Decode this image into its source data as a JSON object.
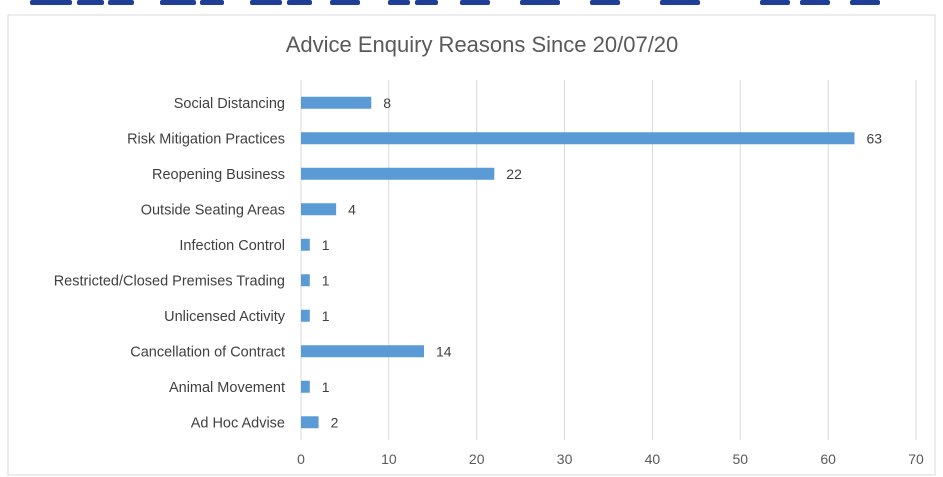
{
  "chart_data": {
    "type": "bar",
    "orientation": "horizontal",
    "title": "Advice Enquiry Reasons Since 20/07/20",
    "categories": [
      "Social Distancing",
      "Risk Mitigation Practices",
      "Reopening Business",
      "Outside Seating Areas",
      "Infection Control",
      "Restricted/Closed Premises Trading",
      "Unlicensed Activity",
      "Cancellation of Contract",
      "Animal Movement",
      "Ad Hoc Advise"
    ],
    "values": [
      8,
      63,
      22,
      4,
      1,
      1,
      1,
      14,
      1,
      2
    ],
    "xlim": [
      0,
      70
    ],
    "xticks": [
      0,
      10,
      20,
      30,
      40,
      50,
      60,
      70
    ],
    "grid": true,
    "legend": "none",
    "bar_color": "#5b9bd5",
    "grid_color": "#d9d9d9",
    "top_strip_color": "#1f3e96"
  }
}
